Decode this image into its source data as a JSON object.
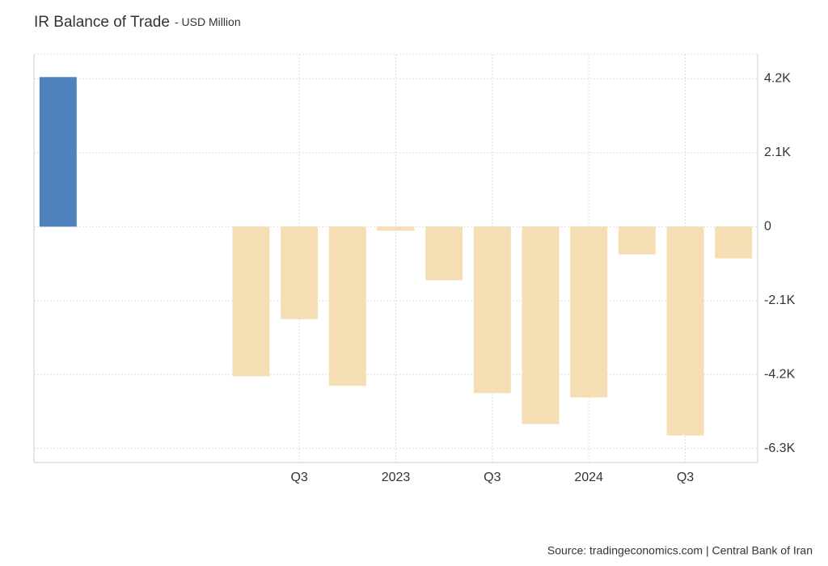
{
  "chart_data": {
    "type": "bar",
    "title": "IR Balance of Trade",
    "subtitle": "- USD Million",
    "source": "Source: tradingeconomics.com | Central Bank of Iran",
    "categories": [
      null,
      null,
      null,
      null,
      null,
      "Q3",
      null,
      "2023",
      null,
      "Q3",
      null,
      "2024",
      null,
      "Q3",
      null
    ],
    "values": [
      4250,
      null,
      null,
      null,
      -4250,
      -2630,
      -4520,
      -115,
      -1520,
      -4730,
      -5610,
      -4850,
      -785,
      -5930,
      -900
    ],
    "color_positive": "#4f81bd",
    "color_negative": "#f5deb3",
    "ylim": [
      -6700,
      4900
    ],
    "yticks": [
      {
        "value": 4200,
        "label": "4.2K"
      },
      {
        "value": 2100,
        "label": "2.1K"
      },
      0,
      {
        "value": -2100,
        "label": "-2.1K"
      },
      {
        "value": -4200,
        "label": "-4.2K"
      },
      {
        "value": -6300,
        "label": "-6.3K"
      }
    ],
    "grid": true
  }
}
